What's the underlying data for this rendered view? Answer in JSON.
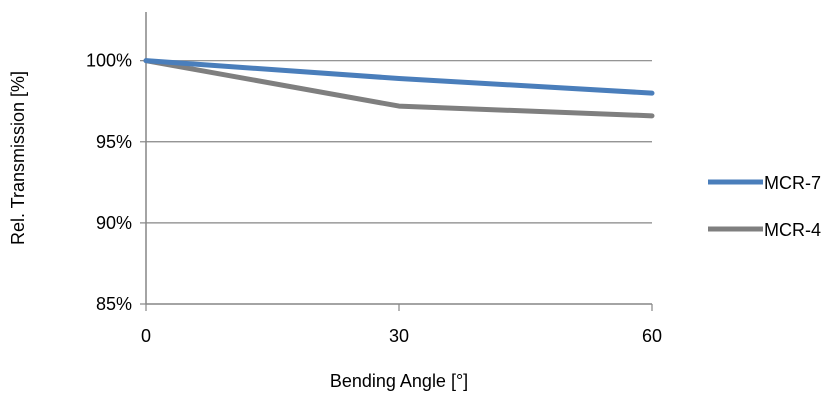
{
  "chart_data": {
    "type": "line",
    "title": "",
    "xlabel": "Bending Angle [°]",
    "ylabel": "Rel. Transmission [%]",
    "x": [
      0,
      30,
      60
    ],
    "x_ticks": [
      "0",
      "30",
      "60"
    ],
    "y_ticks": [
      "85%",
      "90%",
      "95%",
      "100%"
    ],
    "y_tick_values": [
      0.85,
      0.9,
      0.95,
      1.0
    ],
    "ylim": [
      0.85,
      1.03
    ],
    "grid": "horizontal",
    "legend_position": "right",
    "series": [
      {
        "name": "MCR-7",
        "values": [
          1.0,
          0.989,
          0.98
        ],
        "color": "#4a7ebb"
      },
      {
        "name": "MCR-4",
        "values": [
          1.0,
          0.972,
          0.966
        ],
        "color": "#7f7f7f"
      }
    ]
  }
}
